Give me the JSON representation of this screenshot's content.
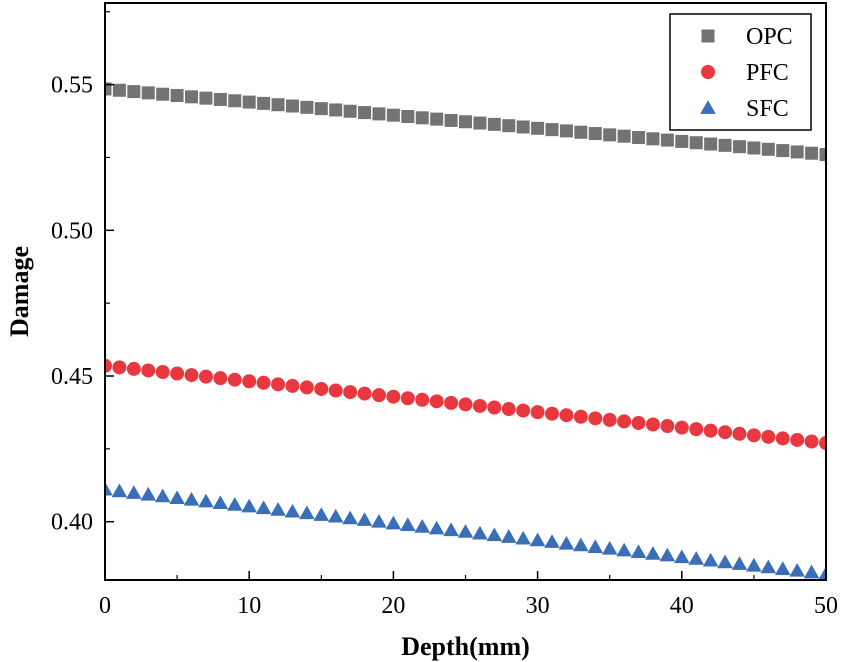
{
  "chart_data": {
    "type": "scatter",
    "title": "",
    "xlabel": "Depth(mm)",
    "ylabel": "Damage",
    "xlim": [
      0,
      50
    ],
    "ylim": [
      0.38,
      0.578
    ],
    "xticks": [
      0,
      10,
      20,
      30,
      40,
      50
    ],
    "xtick_labels": [
      "0",
      "10",
      "20",
      "30",
      "40",
      "50"
    ],
    "yticks": [
      0.4,
      0.45,
      0.5,
      0.55
    ],
    "ytick_labels": [
      "0.40",
      "0.45",
      "0.50",
      "0.55"
    ],
    "grid": false,
    "legend_position": "top-right",
    "x_start": 0,
    "x_end": 50,
    "x_step": 1,
    "series": [
      {
        "name": "OPC",
        "marker": "square",
        "color": "#737373",
        "y_start": 0.5485,
        "y_end": 0.526
      },
      {
        "name": "PFC",
        "marker": "circle",
        "color": "#e8373f",
        "y_start": 0.4535,
        "y_end": 0.427
      },
      {
        "name": "SFC",
        "marker": "triangle",
        "color": "#3a6fb7",
        "y_start": 0.411,
        "y_end": 0.382
      }
    ]
  }
}
